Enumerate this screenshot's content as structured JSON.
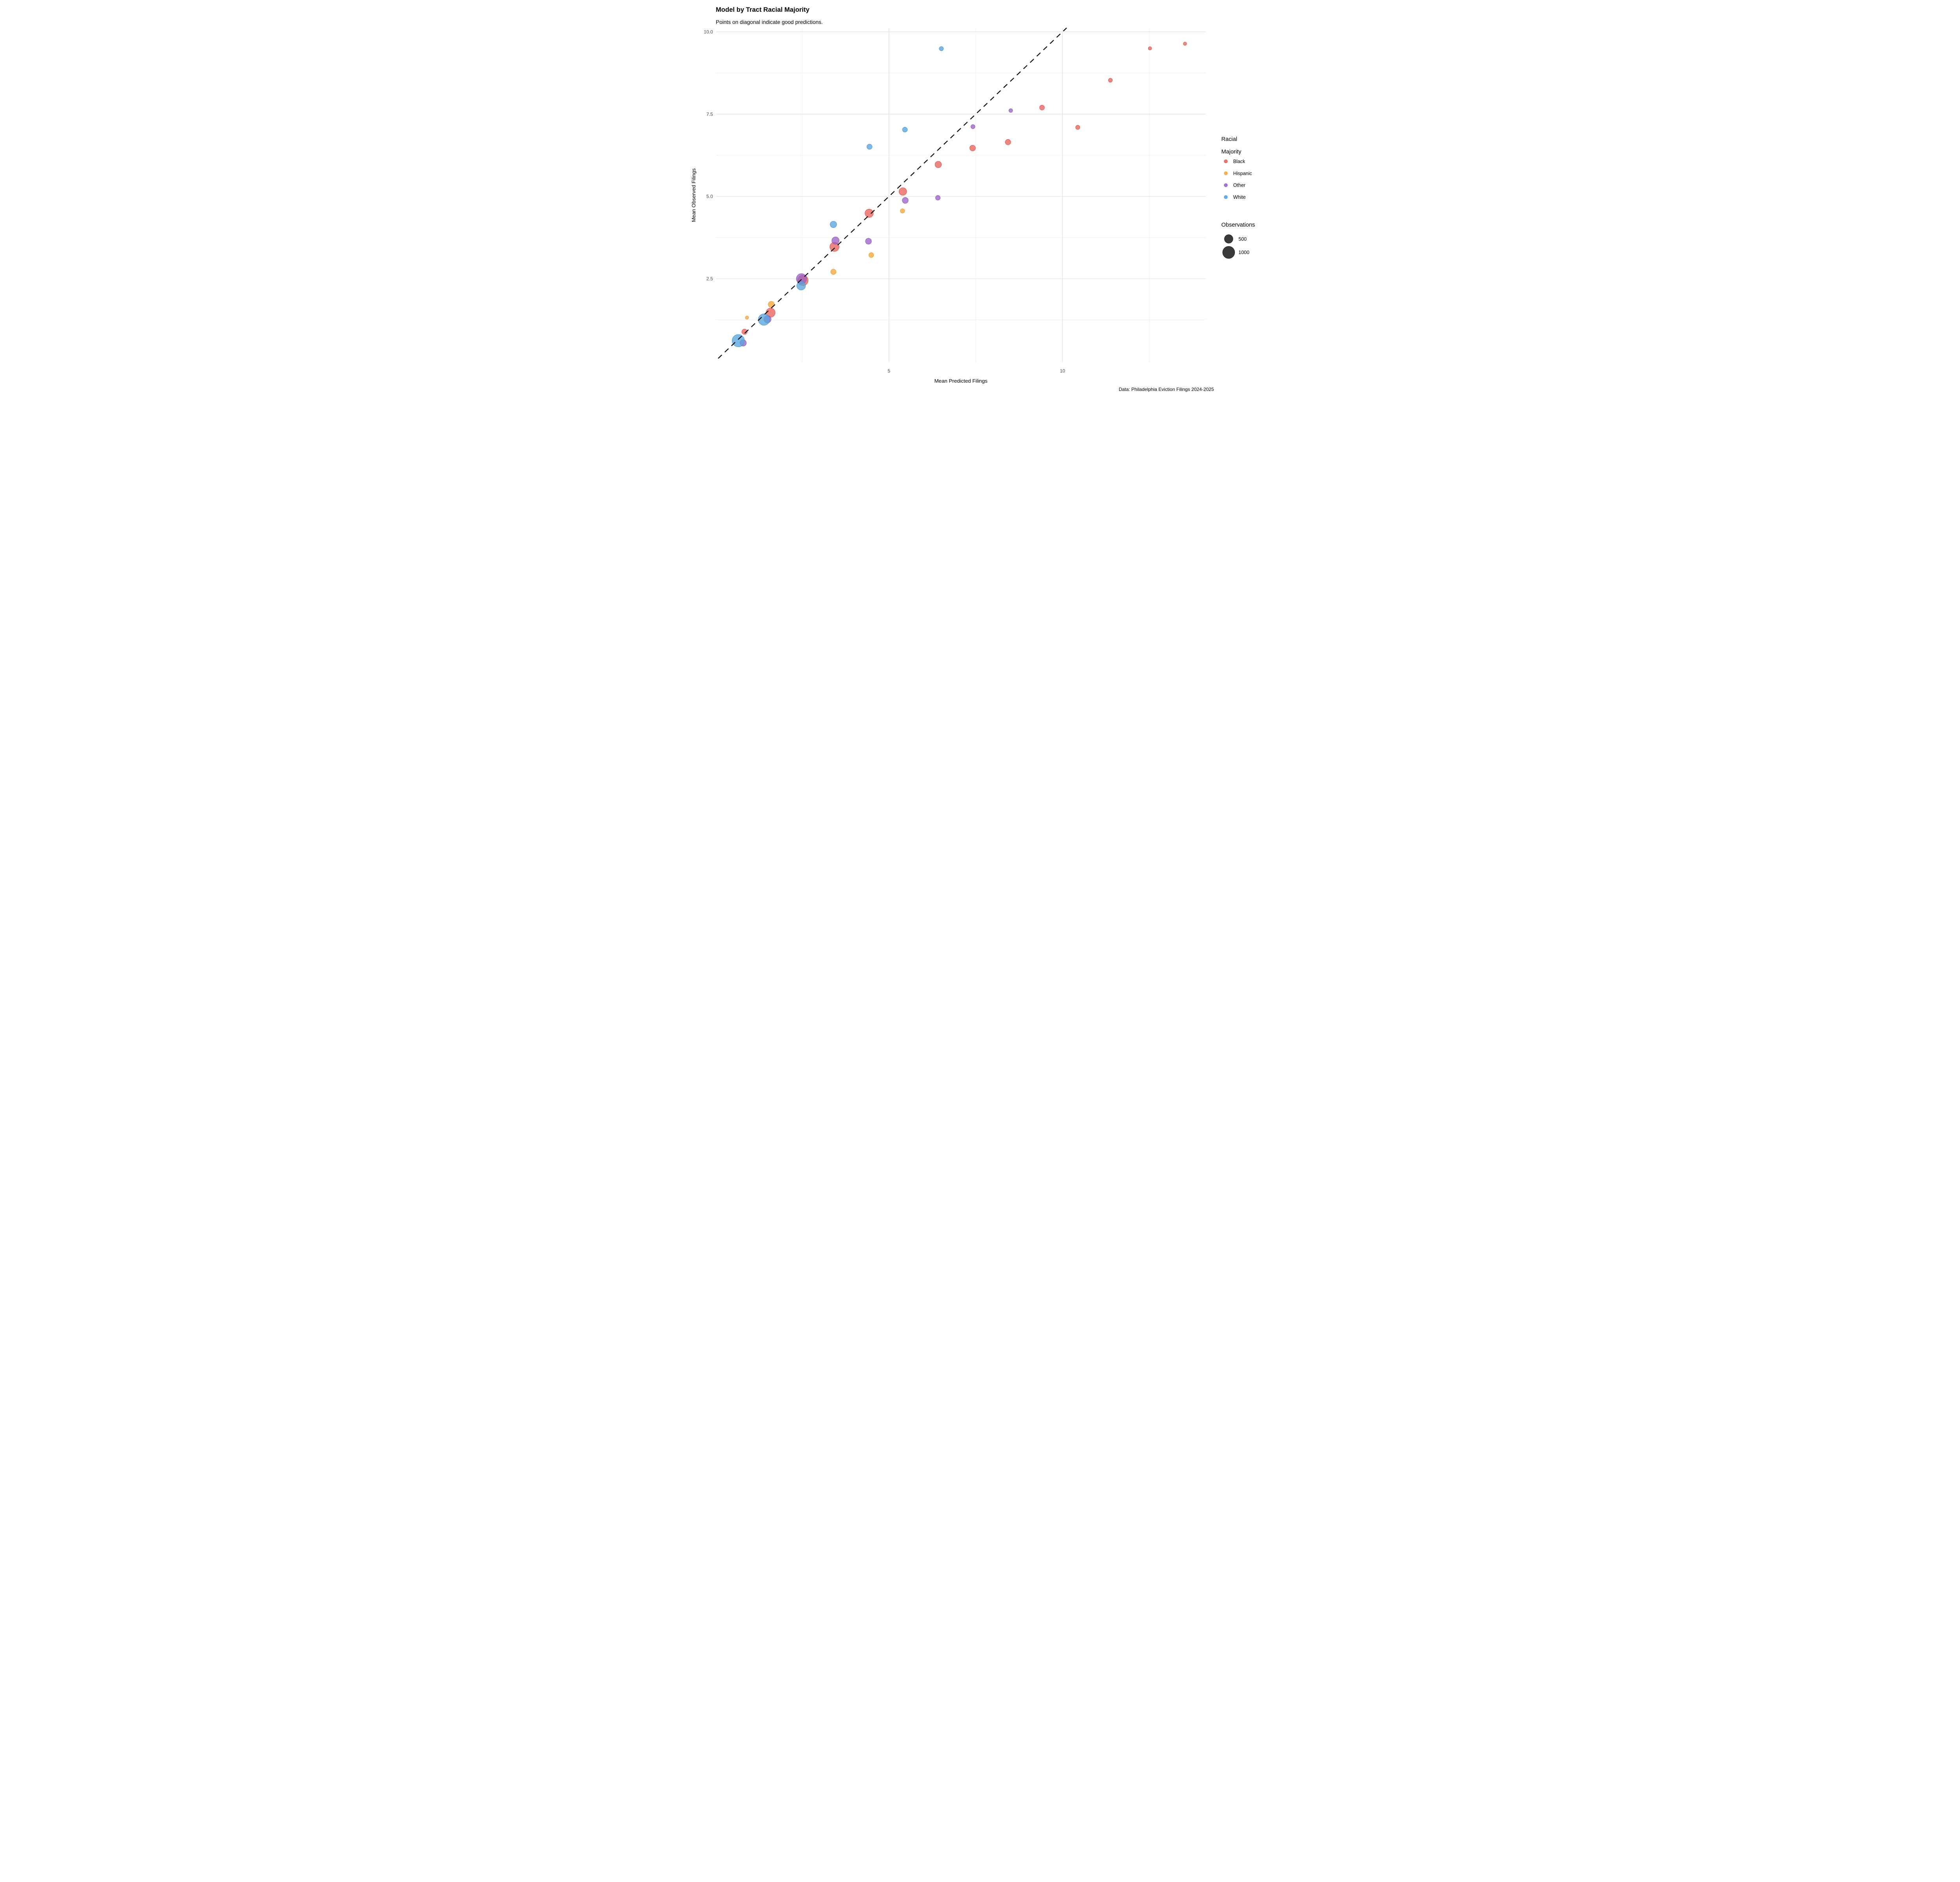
{
  "title": "Model by Tract Racial Majority",
  "subtitle": "Points on diagonal indicate good predictions.",
  "caption": "Data: Philadelphia Eviction Filings 2024-2025",
  "chart_data": {
    "type": "scatter",
    "title": "Model by Tract Racial Majority",
    "subtitle": "Points on diagonal indicate good predictions.",
    "xlabel": "Mean Predicted Filings",
    "ylabel": "Mean Observed Filings",
    "xlim": [
      0,
      14.2
    ],
    "ylim": [
      0,
      10.2
    ],
    "grid": true,
    "legend_position": "right",
    "x_ticks": [
      {
        "v": 5,
        "label": "5"
      },
      {
        "v": 10,
        "label": "10"
      }
    ],
    "y_ticks": [
      {
        "v": 2.5,
        "label": "2.5"
      },
      {
        "v": 5.0,
        "label": "5.0"
      },
      {
        "v": 7.5,
        "label": "7.5"
      },
      {
        "v": 10.0,
        "label": "10.0"
      }
    ],
    "x_minor": [
      2.5,
      7.5,
      12.5
    ],
    "y_minor": [
      1.25,
      3.75,
      6.25,
      8.75
    ],
    "diagonal_line": {
      "meaning": "y = x (perfect prediction)",
      "style": "dashed",
      "from": 0.08,
      "to": 10.12
    },
    "color_legend": {
      "title_lines": [
        "Racial",
        "Majority"
      ]
    },
    "size_legend": {
      "title": "Observations",
      "values": [
        500,
        1000
      ]
    },
    "series": [
      {
        "name": "Black",
        "color": "#E8645A",
        "stroke": "#DF4B40",
        "points": [
          {
            "x": 0.84,
            "y": 0.89,
            "obs": 200
          },
          {
            "x": 1.59,
            "y": 1.47,
            "obs": 570
          },
          {
            "x": 2.52,
            "y": 2.45,
            "obs": 770
          },
          {
            "x": 3.43,
            "y": 3.47,
            "obs": 590
          },
          {
            "x": 4.43,
            "y": 4.49,
            "obs": 480
          },
          {
            "x": 5.4,
            "y": 5.15,
            "obs": 400
          },
          {
            "x": 6.42,
            "y": 5.97,
            "obs": 290
          },
          {
            "x": 7.41,
            "y": 6.47,
            "obs": 230
          },
          {
            "x": 8.43,
            "y": 6.65,
            "obs": 210
          },
          {
            "x": 9.41,
            "y": 7.7,
            "obs": 165
          },
          {
            "x": 10.44,
            "y": 7.1,
            "obs": 125
          },
          {
            "x": 11.38,
            "y": 8.53,
            "obs": 110
          },
          {
            "x": 12.52,
            "y": 9.5,
            "obs": 80
          },
          {
            "x": 13.53,
            "y": 9.64,
            "obs": 80
          }
        ]
      },
      {
        "name": "Hispanic",
        "color": "#F4A83C",
        "stroke": "#EC9722",
        "points": [
          {
            "x": 0.91,
            "y": 1.32,
            "obs": 80
          },
          {
            "x": 1.61,
            "y": 1.72,
            "obs": 265
          },
          {
            "x": 3.4,
            "y": 2.71,
            "obs": 200
          },
          {
            "x": 4.49,
            "y": 3.22,
            "obs": 165
          },
          {
            "x": 5.39,
            "y": 4.56,
            "obs": 135
          }
        ]
      },
      {
        "name": "Other",
        "color": "#9B64C5",
        "stroke": "#8A4FB7",
        "points": [
          {
            "x": 0.8,
            "y": 0.55,
            "obs": 280
          },
          {
            "x": 1.5,
            "y": 1.27,
            "obs": 370
          },
          {
            "x": 2.48,
            "y": 2.5,
            "obs": 725
          },
          {
            "x": 3.46,
            "y": 3.66,
            "obs": 370
          },
          {
            "x": 4.41,
            "y": 3.64,
            "obs": 250
          },
          {
            "x": 5.47,
            "y": 4.88,
            "obs": 250
          },
          {
            "x": 6.41,
            "y": 4.96,
            "obs": 155
          },
          {
            "x": 7.42,
            "y": 7.12,
            "obs": 120
          },
          {
            "x": 8.51,
            "y": 7.61,
            "obs": 100
          }
        ]
      },
      {
        "name": "White",
        "color": "#57A5DD",
        "stroke": "#4390CE",
        "points": [
          {
            "x": 0.66,
            "y": 0.62,
            "obs": 1050
          },
          {
            "x": 1.4,
            "y": 1.26,
            "obs": 900
          },
          {
            "x": 2.47,
            "y": 2.29,
            "obs": 530
          },
          {
            "x": 3.4,
            "y": 4.15,
            "obs": 290
          },
          {
            "x": 4.44,
            "y": 6.51,
            "obs": 190
          },
          {
            "x": 5.46,
            "y": 7.03,
            "obs": 165
          },
          {
            "x": 6.51,
            "y": 9.49,
            "obs": 125
          }
        ]
      }
    ]
  }
}
